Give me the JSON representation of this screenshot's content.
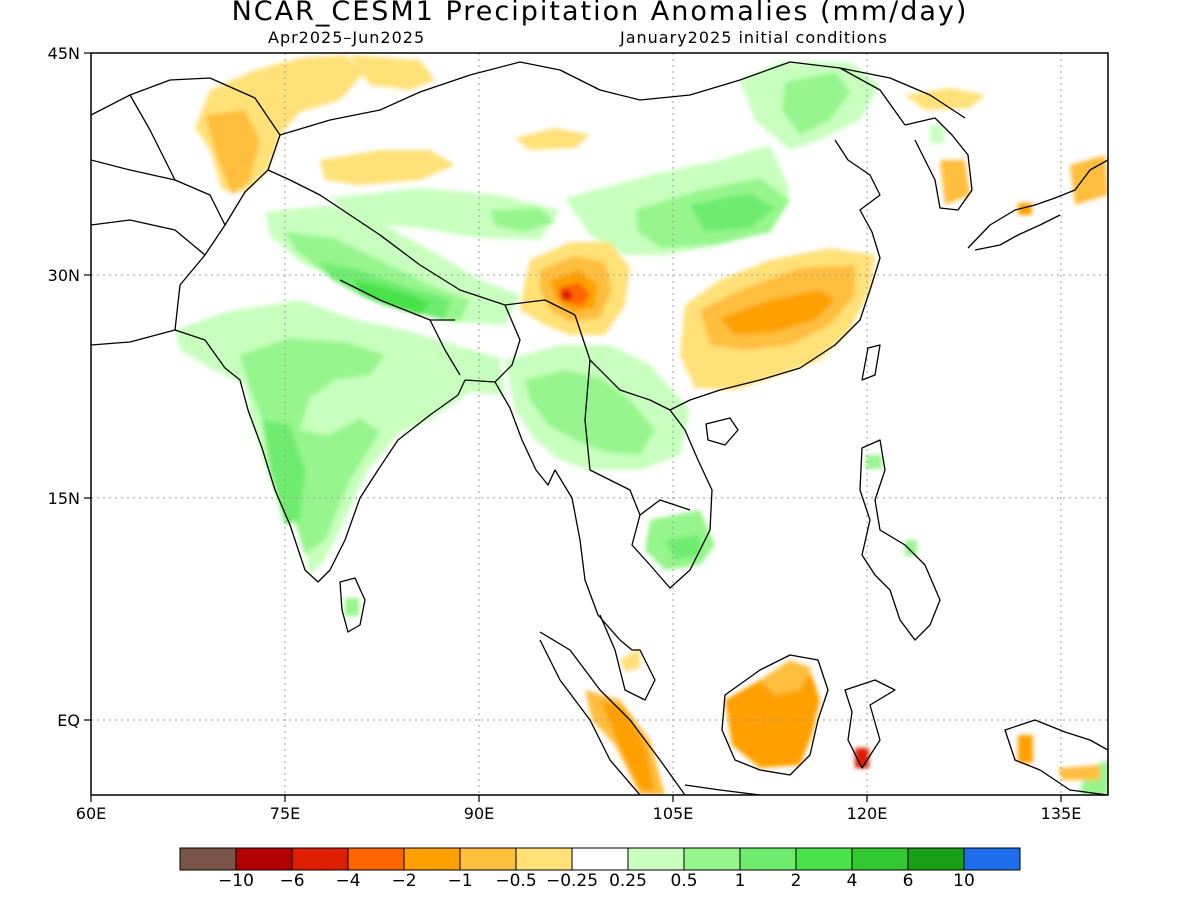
{
  "title": "NCAR_CESM1 Precipitation Anomalies (mm/day)",
  "subtitle_left": "Apr2025–Jun2025",
  "subtitle_right": "January2025 initial conditions",
  "lat_labels": [
    "45N",
    "30N",
    "15N",
    "EQ"
  ],
  "lon_labels": [
    "60E",
    "75E",
    "90E",
    "105E",
    "120E",
    "135E"
  ],
  "colorbar": {
    "colors": [
      "#7a5446",
      "#b30000",
      "#dd1e00",
      "#ff6600",
      "#ffa000",
      "#ffbe3c",
      "#ffe178",
      "#ffffff",
      "#c8ffbe",
      "#96f58c",
      "#6eec6e",
      "#4ae24a",
      "#32c832",
      "#19a019",
      "#1e6eeb"
    ],
    "labels": [
      "−10",
      "−6",
      "−4",
      "−2",
      "−1",
      "−0.5",
      "−0.25",
      "0.25",
      "0.5",
      "1",
      "2",
      "4",
      "6",
      "10"
    ]
  }
}
